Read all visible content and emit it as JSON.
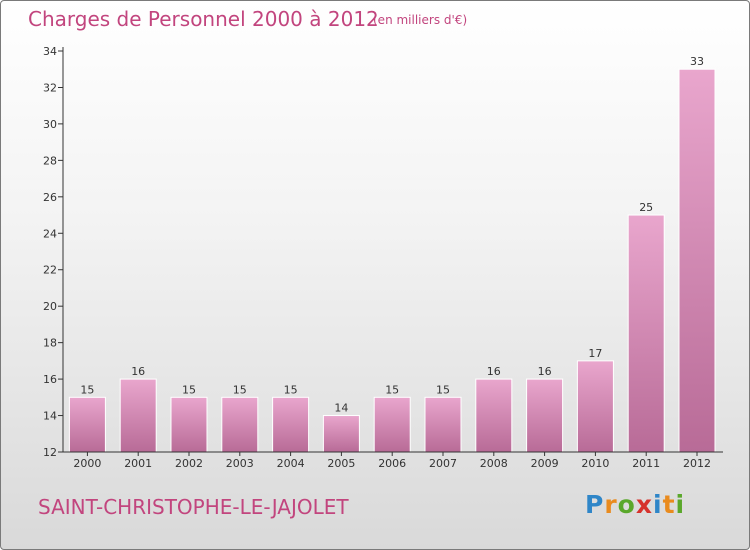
{
  "header": {
    "title": "Charges de Personnel 2000 à 2012",
    "subtitle": "(en milliers d'€)"
  },
  "commune": "SAINT-CHRISTOPHE-LE-JAJOLET",
  "brand": {
    "text": "Proxiti",
    "letters": [
      "P",
      "r",
      "o",
      "x",
      "i",
      "t",
      "i"
    ],
    "colors": [
      "#2f86c8",
      "#e98b1e",
      "#5aa82b",
      "#d6322c",
      "#2f86c8",
      "#e98b1e",
      "#5aa82b"
    ]
  },
  "colors": {
    "bar_top": "#e9a6cd",
    "bar_bottom": "#b86b97",
    "accent": "#c2457e",
    "axis": "#333333"
  },
  "chart_data": {
    "type": "bar",
    "categories": [
      "2000",
      "2001",
      "2002",
      "2003",
      "2004",
      "2005",
      "2006",
      "2007",
      "2008",
      "2009",
      "2010",
      "2011",
      "2012"
    ],
    "values": [
      15,
      16,
      15,
      15,
      15,
      14,
      15,
      15,
      16,
      16,
      17,
      25,
      33
    ],
    "title": "Charges de Personnel 2000 à 2012",
    "subtitle": "(en milliers d'€)",
    "ylim": [
      12,
      34
    ],
    "yticks": [
      12,
      14,
      16,
      18,
      20,
      22,
      24,
      26,
      28,
      30,
      32,
      34
    ],
    "data_labels": true,
    "grid": false
  }
}
